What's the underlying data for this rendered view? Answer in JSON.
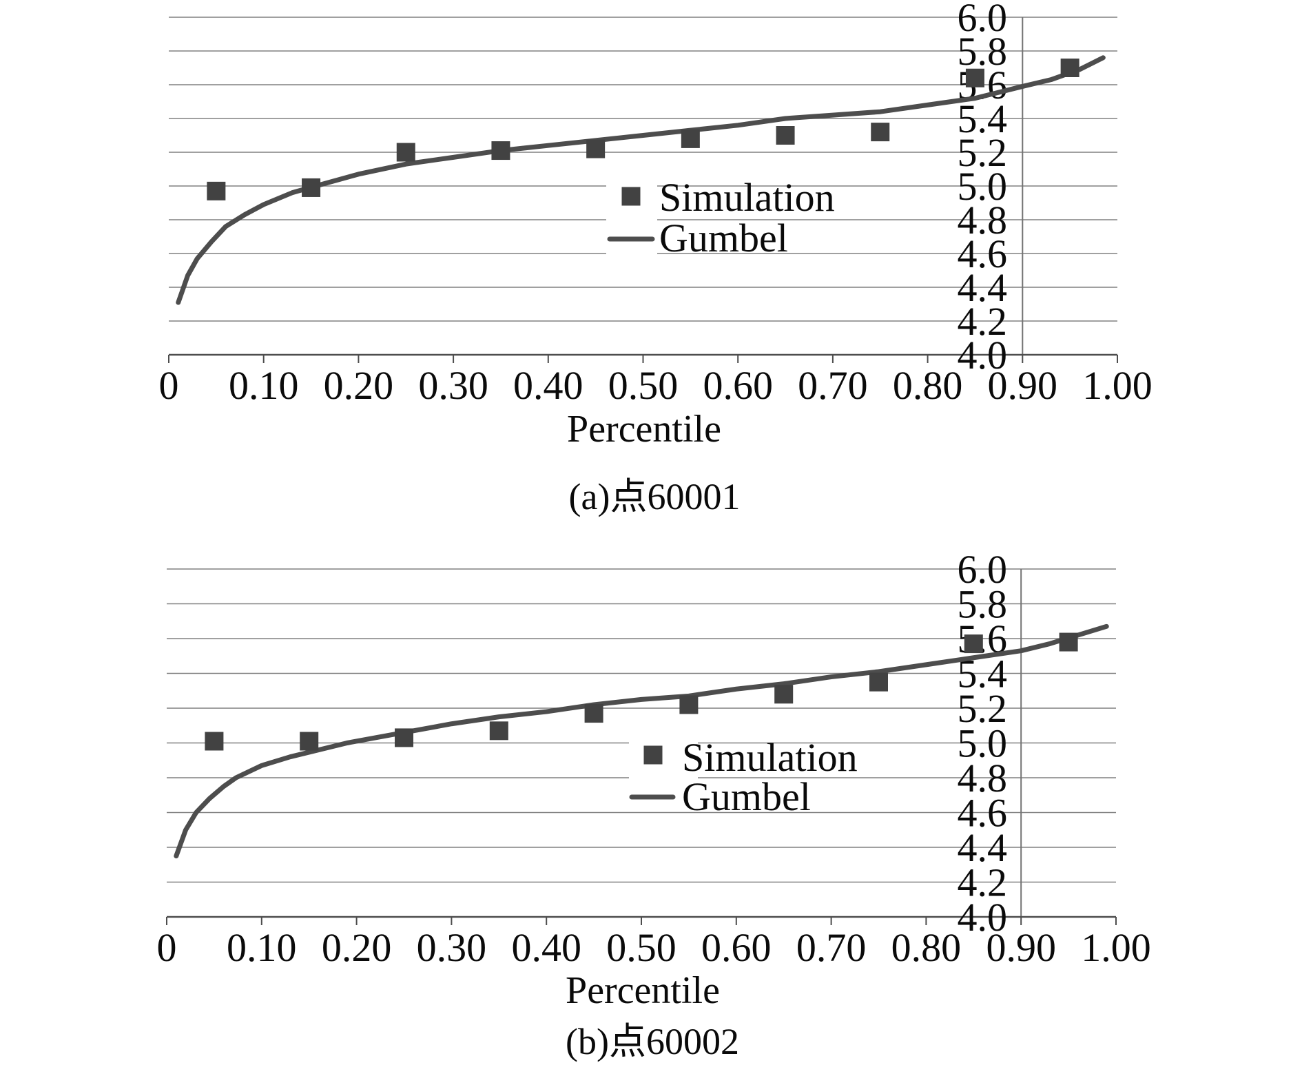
{
  "figure": {
    "background": "#ffffff",
    "grid_color": "#808080",
    "axis_color": "#4d4d4d",
    "value_axis_line_color": "#737373",
    "text_color": "#0a0a0a",
    "charts": [
      {
        "id": "a",
        "caption": "(a)点60001",
        "xlabel": "Percentile",
        "legend": {
          "simulation_label": "Simulation",
          "gumbel_label": "Gumbel"
        },
        "chart_data": {
          "type": "scatter",
          "title": "",
          "xlabel": "Percentile",
          "ylabel": "",
          "xlim": [
            0,
            1.0
          ],
          "ylim": [
            4.0,
            6.0
          ],
          "grid": "horizontal",
          "y_axis_cross_x": 0.9,
          "legend_position": "center-right-inside",
          "x_ticks": [
            0,
            0.1,
            0.2,
            0.3,
            0.4,
            0.5,
            0.6,
            0.7,
            0.8,
            0.9,
            1.0
          ],
          "x_tick_labels": [
            "0",
            "0.10",
            "0.20",
            "0.30",
            "0.40",
            "0.50",
            "0.60",
            "0.70",
            "0.80",
            "0.90",
            "1.00"
          ],
          "y_ticks": [
            4.0,
            4.2,
            4.4,
            4.6,
            4.8,
            5.0,
            5.2,
            5.4,
            5.6,
            5.8,
            6.0
          ],
          "y_tick_labels": [
            "4.0",
            "4.2",
            "4.4",
            "4.6",
            "4.8",
            "5.0",
            "5.2",
            "5.4",
            "5.6",
            "5.8",
            "6.0"
          ],
          "series": [
            {
              "name": "Simulation",
              "type": "scatter",
              "marker": "square",
              "color": "#424242",
              "x": [
                0.05,
                0.15,
                0.25,
                0.35,
                0.45,
                0.55,
                0.65,
                0.75,
                0.85,
                0.95
              ],
              "y": [
                4.97,
                4.99,
                5.2,
                5.21,
                5.22,
                5.28,
                5.3,
                5.32,
                5.64,
                5.7
              ]
            },
            {
              "name": "Gumbel",
              "type": "line",
              "color": "#4d4d4d",
              "x": [
                0.01,
                0.02,
                0.03,
                0.045,
                0.06,
                0.08,
                0.1,
                0.13,
                0.155,
                0.2,
                0.25,
                0.3,
                0.35,
                0.4,
                0.45,
                0.5,
                0.55,
                0.6,
                0.65,
                0.7,
                0.75,
                0.8,
                0.85,
                0.9,
                0.93,
                0.96,
                0.985
              ],
              "y": [
                4.31,
                4.47,
                4.57,
                4.67,
                4.76,
                4.83,
                4.89,
                4.96,
                5.0,
                5.07,
                5.13,
                5.17,
                5.21,
                5.24,
                5.27,
                5.3,
                5.33,
                5.36,
                5.4,
                5.42,
                5.44,
                5.48,
                5.52,
                5.59,
                5.63,
                5.69,
                5.76
              ]
            }
          ]
        }
      },
      {
        "id": "b",
        "caption": "(b)点60002",
        "xlabel": "Percentile",
        "legend": {
          "simulation_label": "Simulation",
          "gumbel_label": "Gumbel"
        },
        "chart_data": {
          "type": "scatter",
          "title": "",
          "xlabel": "Percentile",
          "ylabel": "",
          "xlim": [
            0,
            1.0
          ],
          "ylim": [
            4.0,
            6.0
          ],
          "grid": "horizontal",
          "y_axis_cross_x": 0.9,
          "legend_position": "center-right-inside",
          "x_ticks": [
            0,
            0.1,
            0.2,
            0.3,
            0.4,
            0.5,
            0.6,
            0.7,
            0.8,
            0.9,
            1.0
          ],
          "x_tick_labels": [
            "0",
            "0.10",
            "0.20",
            "0.30",
            "0.40",
            "0.50",
            "0.60",
            "0.70",
            "0.80",
            "0.90",
            "1.00"
          ],
          "y_ticks": [
            4.0,
            4.2,
            4.4,
            4.6,
            4.8,
            5.0,
            5.2,
            5.4,
            5.6,
            5.8,
            6.0
          ],
          "y_tick_labels": [
            "4.0",
            "4.2",
            "4.4",
            "4.6",
            "4.8",
            "5.0",
            "5.2",
            "5.4",
            "5.6",
            "5.8",
            "6.0"
          ],
          "series": [
            {
              "name": "Simulation",
              "type": "scatter",
              "marker": "square",
              "color": "#424242",
              "x": [
                0.05,
                0.15,
                0.25,
                0.35,
                0.45,
                0.55,
                0.65,
                0.75,
                0.85,
                0.95
              ],
              "y": [
                5.01,
                5.01,
                5.03,
                5.07,
                5.17,
                5.22,
                5.28,
                5.35,
                5.57,
                5.58
              ]
            },
            {
              "name": "Gumbel",
              "type": "line",
              "color": "#4d4d4d",
              "x": [
                0.01,
                0.02,
                0.031,
                0.045,
                0.06,
                0.073,
                0.1,
                0.13,
                0.16,
                0.19,
                0.25,
                0.3,
                0.35,
                0.4,
                0.45,
                0.5,
                0.55,
                0.6,
                0.65,
                0.7,
                0.75,
                0.8,
                0.85,
                0.9,
                0.93,
                0.96,
                0.99
              ],
              "y": [
                4.35,
                4.5,
                4.6,
                4.68,
                4.75,
                4.8,
                4.87,
                4.92,
                4.96,
                5.0,
                5.06,
                5.11,
                5.15,
                5.18,
                5.22,
                5.25,
                5.27,
                5.31,
                5.34,
                5.38,
                5.41,
                5.45,
                5.49,
                5.53,
                5.57,
                5.62,
                5.67
              ]
            }
          ]
        }
      }
    ]
  }
}
